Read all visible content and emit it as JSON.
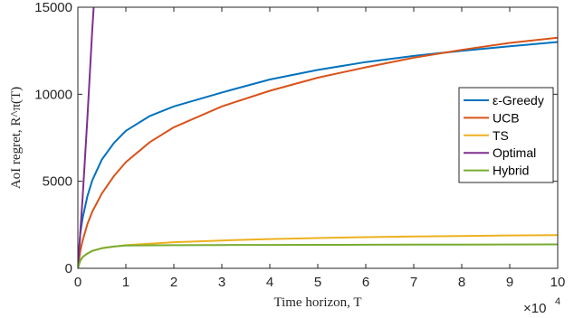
{
  "chart_data": {
    "type": "line",
    "xlabel": "Time horizon, T",
    "ylabel": "AoI regret, R^π(T)",
    "xlim": [
      0,
      10
    ],
    "ylim": [
      0,
      15000
    ],
    "x_exponent": {
      "base": "×10",
      "power": "4"
    },
    "xticks": [
      0,
      1,
      2,
      3,
      4,
      5,
      6,
      7,
      8,
      9,
      10
    ],
    "xtick_labels": [
      "0",
      "1",
      "2",
      "3",
      "4",
      "5",
      "6",
      "7",
      "8",
      "9",
      "10"
    ],
    "yticks": [
      0,
      5000,
      10000,
      15000
    ],
    "ytick_labels": [
      "0",
      "5000",
      "10000",
      "15000"
    ],
    "grid": false,
    "legend_position": "right",
    "series": [
      {
        "name": "ε-Greedy",
        "color": "#0072BD",
        "x": [
          0,
          0.05,
          0.1,
          0.2,
          0.3,
          0.5,
          0.75,
          1,
          1.5,
          2,
          3,
          4,
          5,
          6,
          7,
          8,
          9,
          10
        ],
        "y": [
          0,
          2000,
          2900,
          4150,
          5050,
          6250,
          7200,
          7900,
          8750,
          9300,
          10100,
          10850,
          11400,
          11850,
          12200,
          12500,
          12750,
          13000
        ]
      },
      {
        "name": "UCB",
        "color": "#D95319",
        "x": [
          0,
          0.05,
          0.1,
          0.2,
          0.3,
          0.5,
          0.75,
          1,
          1.5,
          2,
          3,
          4,
          5,
          6,
          7,
          8,
          9,
          10
        ],
        "y": [
          0,
          1000,
          1600,
          2550,
          3250,
          4300,
          5300,
          6100,
          7250,
          8100,
          9300,
          10200,
          10950,
          11550,
          12100,
          12550,
          12950,
          13250
        ]
      },
      {
        "name": "TS",
        "color": "#EDB120",
        "x": [
          0,
          0.05,
          0.1,
          0.2,
          0.3,
          0.5,
          0.75,
          1,
          2,
          3,
          4,
          5,
          6,
          7,
          8,
          9,
          10
        ],
        "y": [
          0,
          450,
          650,
          850,
          1000,
          1150,
          1250,
          1330,
          1500,
          1600,
          1680,
          1740,
          1790,
          1830,
          1860,
          1890,
          1910
        ]
      },
      {
        "name": "Optimal",
        "color": "#7E2F8E",
        "x": [
          0,
          0.1,
          0.2,
          0.3,
          0.33
        ],
        "y": [
          0,
          4100,
          8700,
          13700,
          15000
        ]
      },
      {
        "name": "Hybrid",
        "color": "#77AC30",
        "x": [
          0,
          0.05,
          0.1,
          0.2,
          0.3,
          0.5,
          0.75,
          1,
          2,
          3,
          4,
          5,
          6,
          7,
          8,
          9,
          10
        ],
        "y": [
          0,
          450,
          650,
          850,
          1000,
          1150,
          1250,
          1310,
          1330,
          1340,
          1345,
          1350,
          1355,
          1360,
          1365,
          1370,
          1375
        ]
      }
    ]
  }
}
